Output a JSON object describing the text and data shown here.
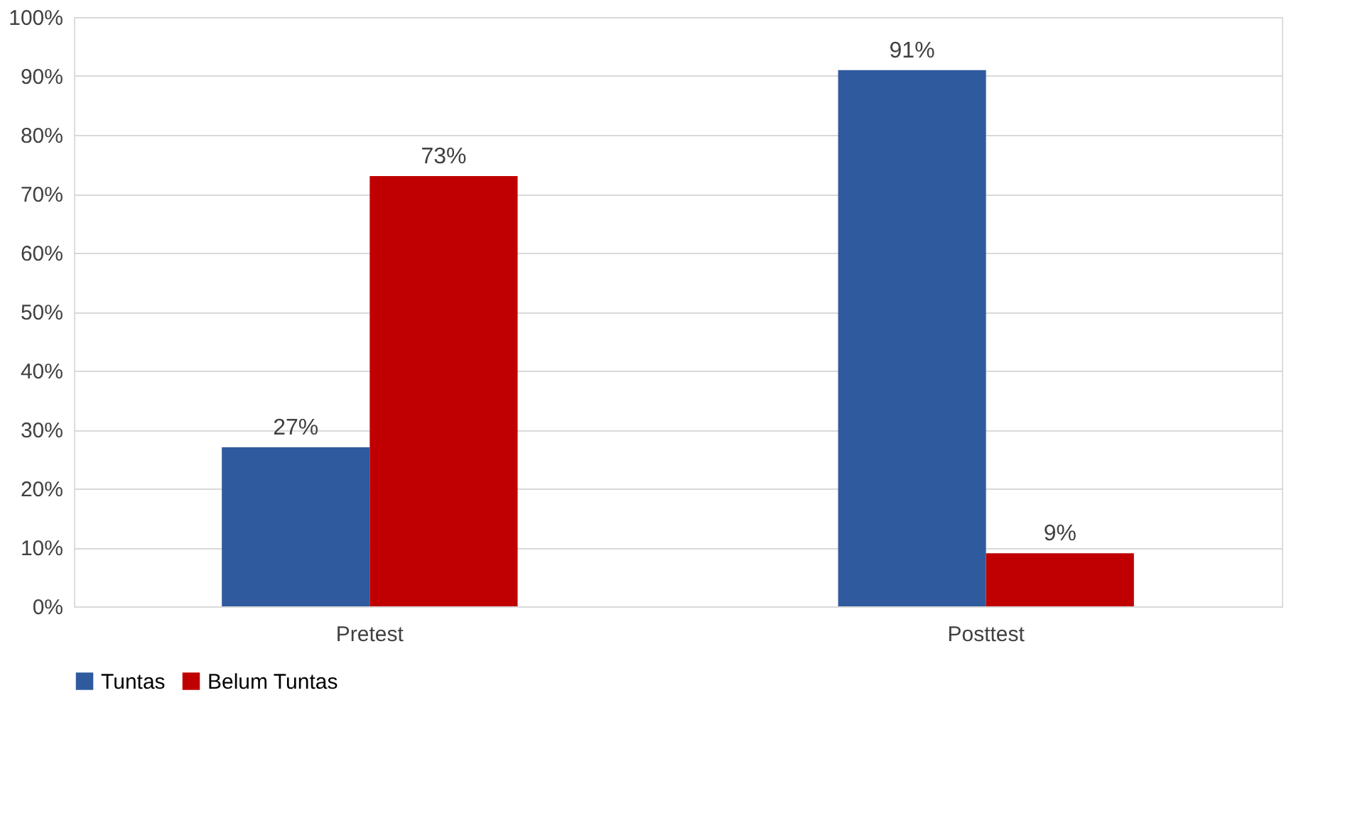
{
  "chart_data": {
    "type": "bar",
    "categories": [
      "Pretest",
      "Posttest"
    ],
    "series": [
      {
        "name": "Tuntas",
        "color": "#2f5b9e",
        "values": [
          27,
          91
        ],
        "value_labels": [
          "27%",
          "91%"
        ]
      },
      {
        "name": "Belum Tuntas",
        "color": "#c00000",
        "values": [
          73,
          9
        ],
        "value_labels": [
          "73%",
          "9%"
        ]
      }
    ],
    "ylim": [
      0,
      100
    ],
    "yticks": [
      {
        "value": 0,
        "label": "0%"
      },
      {
        "value": 10,
        "label": "10%"
      },
      {
        "value": 20,
        "label": "20%"
      },
      {
        "value": 30,
        "label": "30%"
      },
      {
        "value": 40,
        "label": "40%"
      },
      {
        "value": 50,
        "label": "50%"
      },
      {
        "value": 60,
        "label": "60%"
      },
      {
        "value": 70,
        "label": "70%"
      },
      {
        "value": 80,
        "label": "80%"
      },
      {
        "value": 90,
        "label": "90%"
      },
      {
        "value": 100,
        "label": "100%"
      }
    ],
    "grid": "y",
    "legend": "bottom"
  }
}
